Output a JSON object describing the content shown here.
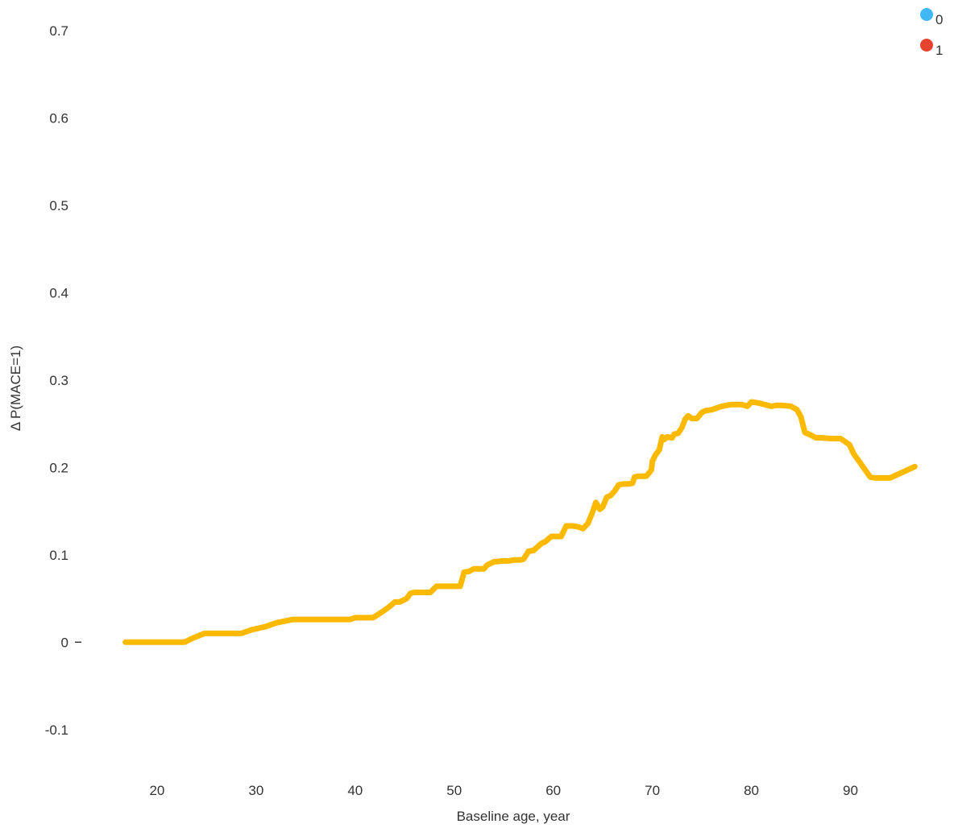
{
  "chart_data": {
    "type": "line",
    "title": "",
    "xlabel": "Baseline age, year",
    "ylabel": "Δ P(MACE=1)",
    "xlim": [
      13.5,
      98.5
    ],
    "ylim": [
      -0.15,
      0.735
    ],
    "x_ticks": [
      20,
      30,
      40,
      50,
      60,
      70,
      80,
      90
    ],
    "y_ticks": [
      -0.1,
      0,
      0.1,
      0.2,
      0.3,
      0.4,
      0.5,
      0.6,
      0.7
    ],
    "y_tick_labels": [
      "-0.1",
      "0",
      "0.1",
      "0.2",
      "0.3",
      "0.4",
      "0.5",
      "0.6",
      "0.7"
    ],
    "zero_tick_marker": "–",
    "grid": false,
    "legend_position": "top-right",
    "legend": [
      {
        "label": "0",
        "color": "#3FB8F5"
      },
      {
        "label": "1",
        "color": "#E8432F"
      }
    ],
    "line_color": "#FBBA00",
    "series": [
      {
        "color": "#FBBA00",
        "x": [
          16.8,
          18,
          19,
          20,
          21,
          22,
          22.8,
          23.5,
          24.8,
          26,
          27,
          28.5,
          29.5,
          31,
          32,
          33.7,
          35,
          36,
          37,
          38,
          39,
          39.5,
          40,
          41,
          41.8,
          42.5,
          43,
          43.5,
          44,
          44.5,
          45.2,
          45.6,
          46,
          47,
          47.6,
          48.2,
          49,
          50,
          50.6,
          51,
          51.5,
          52,
          52.5,
          53,
          53.3,
          54,
          55,
          55.5,
          56,
          56.6,
          57,
          57.5,
          58,
          58.8,
          59.2,
          59.8,
          60.3,
          60.8,
          61.3,
          62,
          62.5,
          63,
          63.5,
          64,
          64.3,
          64.7,
          65,
          65.4,
          65.8,
          66.2,
          66.6,
          67,
          67.5,
          68,
          68.2,
          68.6,
          69,
          69.4,
          69.9,
          70,
          70.3,
          70.7,
          71,
          71.2,
          71.5,
          72,
          72.2,
          72.6,
          73,
          73.3,
          73.6,
          74,
          74.5,
          75,
          75.4,
          76,
          77,
          78,
          79,
          79.6,
          80,
          80.6,
          81,
          82,
          82.5,
          83,
          84,
          84.6,
          85,
          85.4,
          86,
          86.5,
          87,
          88,
          89,
          89.9,
          90.3,
          91,
          91.5,
          92,
          92.5,
          93,
          94,
          96.5
        ],
        "y": [
          0,
          0,
          0,
          0,
          0,
          0,
          0,
          0.004,
          0.01,
          0.01,
          0.01,
          0.01,
          0.014,
          0.018,
          0.022,
          0.026,
          0.026,
          0.026,
          0.026,
          0.026,
          0.026,
          0.026,
          0.028,
          0.028,
          0.028,
          0.033,
          0.037,
          0.041,
          0.046,
          0.046,
          0.05,
          0.056,
          0.057,
          0.057,
          0.057,
          0.064,
          0.064,
          0.064,
          0.064,
          0.08,
          0.081,
          0.084,
          0.084,
          0.084,
          0.088,
          0.092,
          0.093,
          0.093,
          0.094,
          0.094,
          0.095,
          0.104,
          0.105,
          0.113,
          0.115,
          0.121,
          0.121,
          0.121,
          0.133,
          0.133,
          0.132,
          0.13,
          0.136,
          0.15,
          0.16,
          0.152,
          0.155,
          0.166,
          0.168,
          0.173,
          0.18,
          0.181,
          0.181,
          0.182,
          0.189,
          0.19,
          0.19,
          0.19,
          0.197,
          0.207,
          0.214,
          0.22,
          0.235,
          0.232,
          0.235,
          0.234,
          0.238,
          0.239,
          0.246,
          0.255,
          0.259,
          0.256,
          0.256,
          0.263,
          0.265,
          0.266,
          0.27,
          0.272,
          0.272,
          0.27,
          0.275,
          0.274,
          0.273,
          0.27,
          0.271,
          0.271,
          0.27,
          0.266,
          0.258,
          0.24,
          0.237,
          0.234,
          0.234,
          0.233,
          0.233,
          0.226,
          0.216,
          0.205,
          0.197,
          0.189,
          0.188,
          0.188,
          0.188,
          0.201
        ]
      }
    ]
  }
}
